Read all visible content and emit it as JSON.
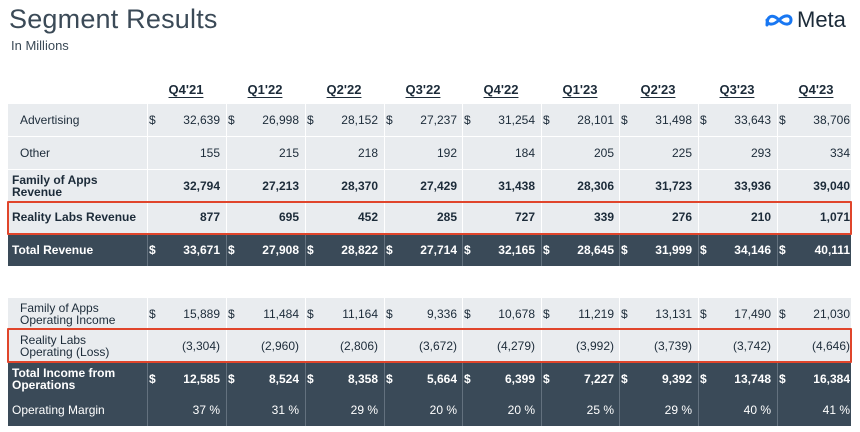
{
  "header": {
    "title": "Segment Results",
    "subtitle": "In Millions",
    "logo_text": "Meta",
    "logo_icon": "meta-infinity-icon"
  },
  "quarters": [
    "Q4'21",
    "Q1'22",
    "Q2'22",
    "Q3'22",
    "Q4'22",
    "Q1'23",
    "Q2'23",
    "Q3'23",
    "Q4'23"
  ],
  "colors": {
    "dark_row": "#3a4a58",
    "light_row": "#e9ecef",
    "highlight": "#e0452b"
  },
  "tables": [
    {
      "rows": [
        {
          "label": "Advertising",
          "dollar": true,
          "values": [
            "32,639",
            "26,998",
            "28,152",
            "27,237",
            "31,254",
            "28,101",
            "31,498",
            "33,643",
            "38,706"
          ]
        },
        {
          "label": "Other",
          "dollar": false,
          "values": [
            "155",
            "215",
            "218",
            "192",
            "184",
            "205",
            "225",
            "293",
            "334"
          ]
        },
        {
          "label": "Family of Apps Revenue",
          "dollar": false,
          "values": [
            "32,794",
            "27,213",
            "28,370",
            "27,429",
            "31,438",
            "28,306",
            "31,723",
            "33,936",
            "39,040"
          ]
        },
        {
          "label": "Reality Labs Revenue",
          "dollar": false,
          "highlighted": true,
          "values": [
            "877",
            "695",
            "452",
            "285",
            "727",
            "339",
            "276",
            "210",
            "1,071"
          ]
        },
        {
          "label": "Total Revenue",
          "dollar": true,
          "values": [
            "33,671",
            "27,908",
            "28,822",
            "27,714",
            "32,165",
            "28,645",
            "31,999",
            "34,146",
            "40,111"
          ]
        }
      ]
    },
    {
      "rows": [
        {
          "label": "Family of Apps Operating Income",
          "dollar": true,
          "values": [
            "15,889",
            "11,484",
            "11,164",
            "9,336",
            "10,678",
            "11,219",
            "13,131",
            "17,490",
            "21,030"
          ]
        },
        {
          "label": "Reality Labs Operating (Loss)",
          "dollar": false,
          "highlighted": true,
          "values": [
            "(3,304)",
            "(2,960)",
            "(2,806)",
            "(3,672)",
            "(4,279)",
            "(3,992)",
            "(3,739)",
            "(3,742)",
            "(4,646)"
          ]
        },
        {
          "label": "Total Income from Operations",
          "dollar": true,
          "values": [
            "12,585",
            "8,524",
            "8,358",
            "5,664",
            "6,399",
            "7,227",
            "9,392",
            "13,748",
            "16,384"
          ]
        },
        {
          "label": "Operating Margin",
          "dollar": false,
          "values": [
            "37 %",
            "31 %",
            "29 %",
            "20 %",
            "20 %",
            "25 %",
            "29 %",
            "40 %",
            "41 %"
          ]
        }
      ]
    }
  ]
}
